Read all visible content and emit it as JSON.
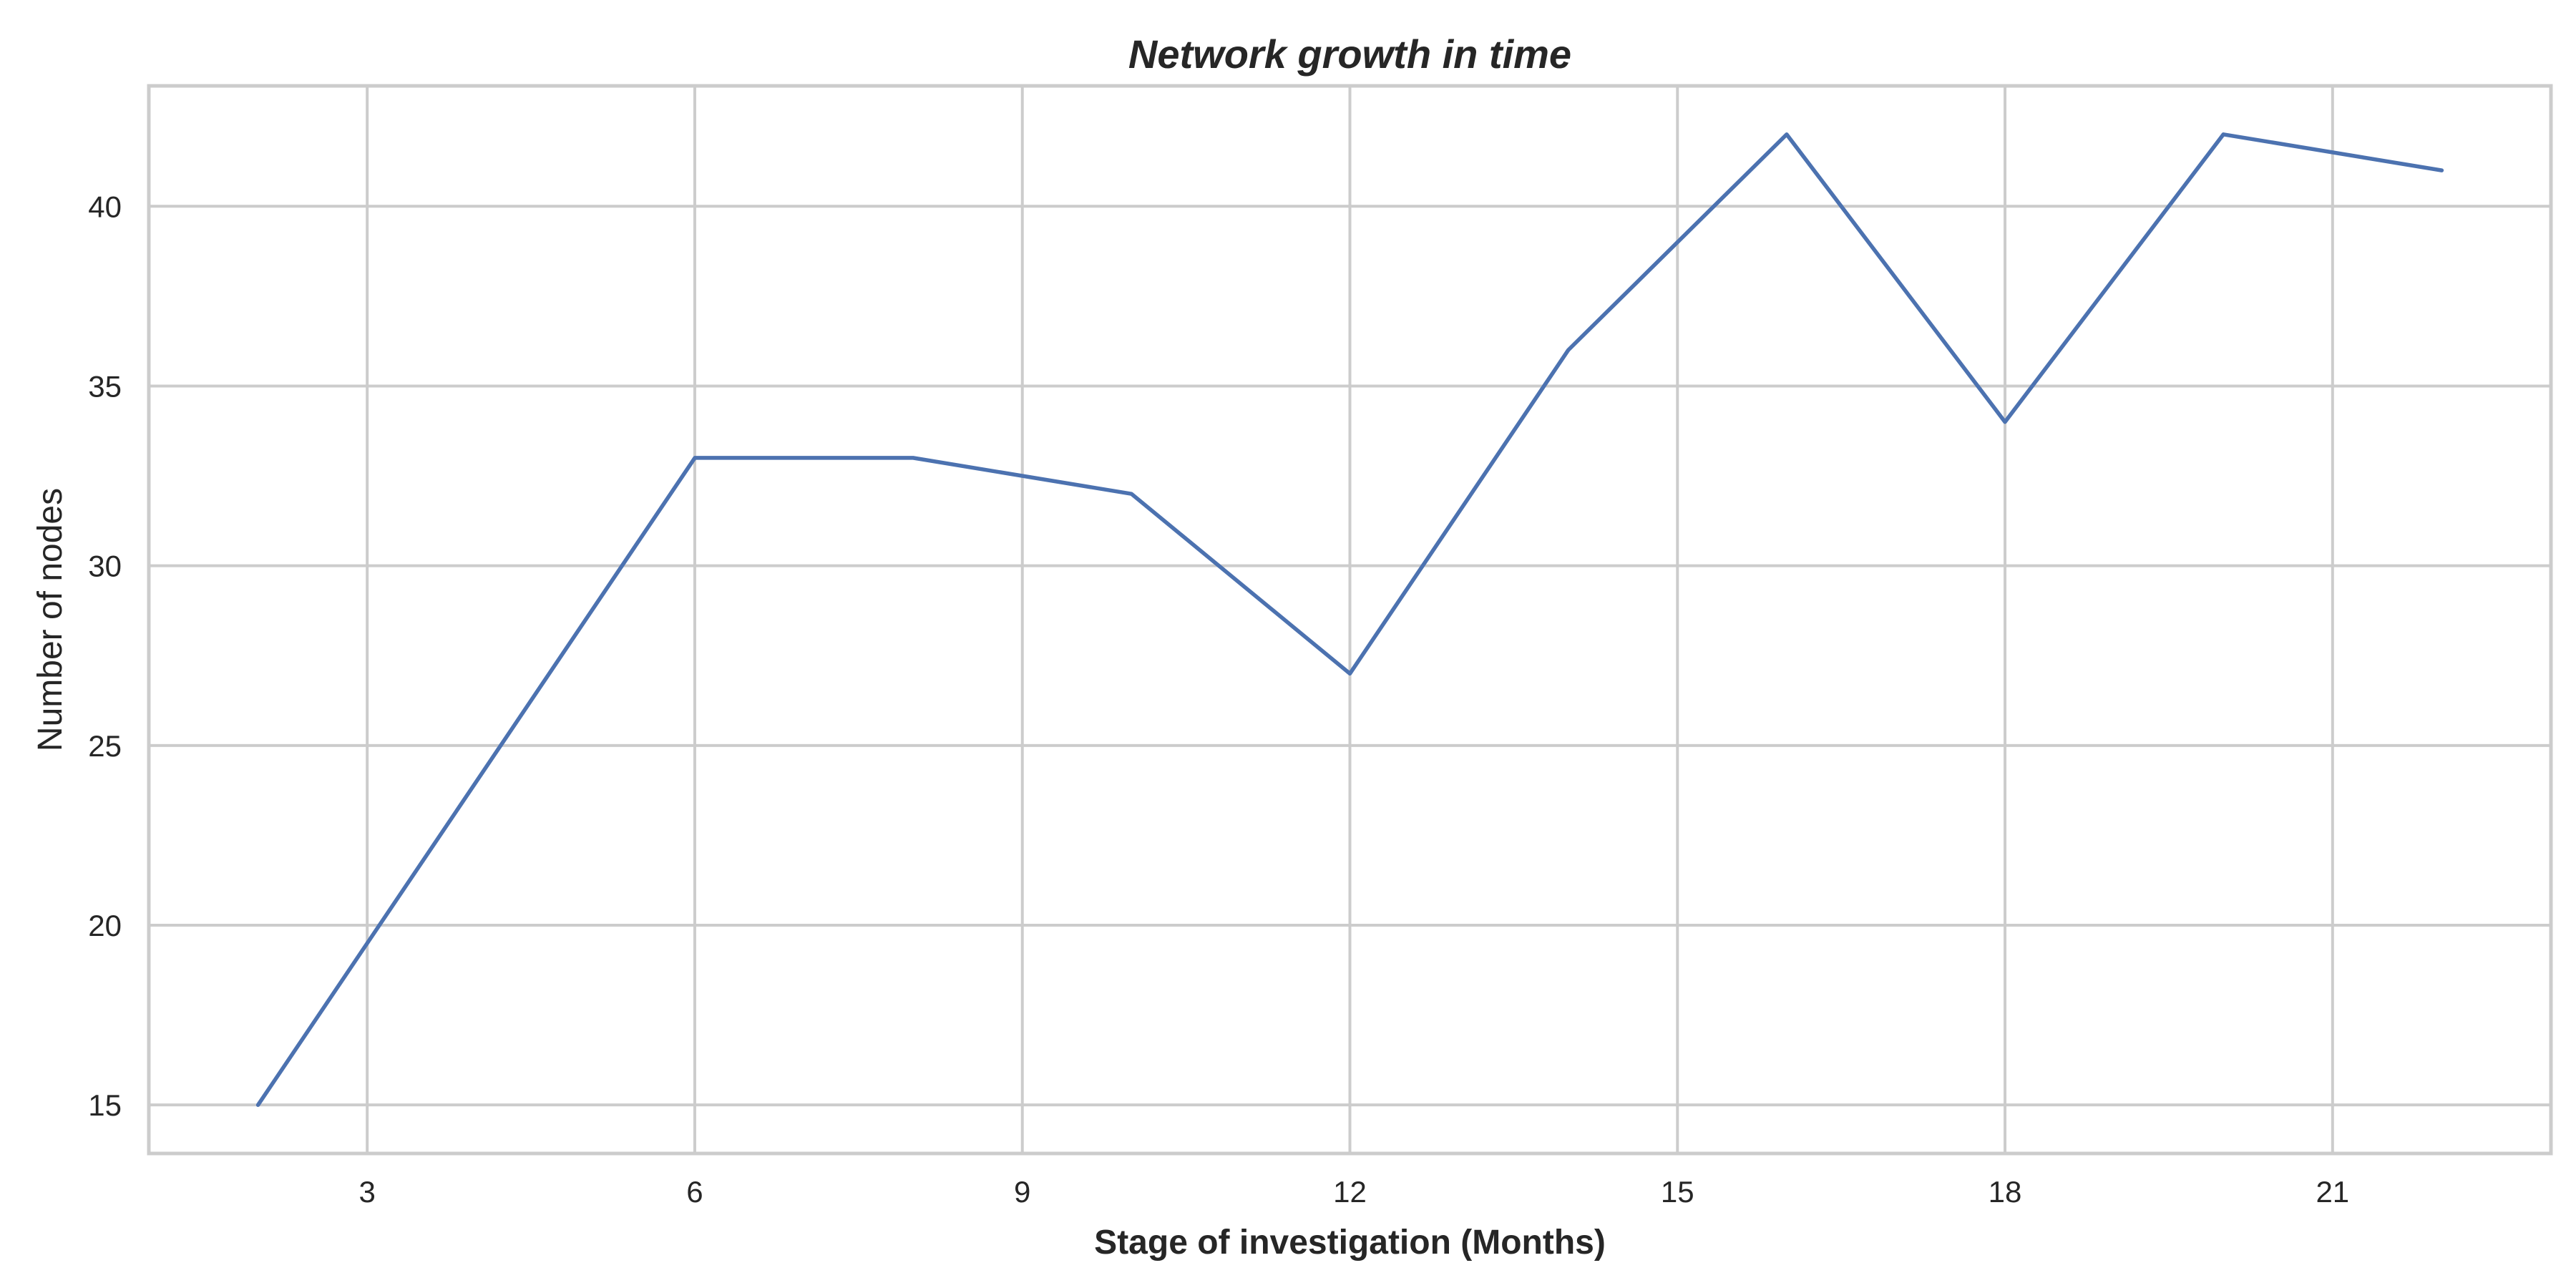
{
  "chart_data": {
    "type": "line",
    "title": "Network growth in time",
    "xlabel": "Stage of investigation (Months)",
    "ylabel": "Number of nodes",
    "x": [
      2,
      4,
      6,
      8,
      10,
      12,
      14,
      16,
      18,
      20,
      22
    ],
    "series": [
      {
        "values": [
          15,
          24,
          33,
          33,
          32,
          27,
          36,
          42,
          34,
          42,
          41
        ],
        "color": "#4c72b0"
      }
    ],
    "xticks": [
      3,
      6,
      9,
      12,
      15,
      18,
      21
    ],
    "yticks": [
      15,
      20,
      25,
      30,
      35,
      40
    ],
    "xlim": [
      1,
      23
    ],
    "ylim": [
      13.65,
      43.35
    ],
    "grid": true,
    "legend": false
  }
}
